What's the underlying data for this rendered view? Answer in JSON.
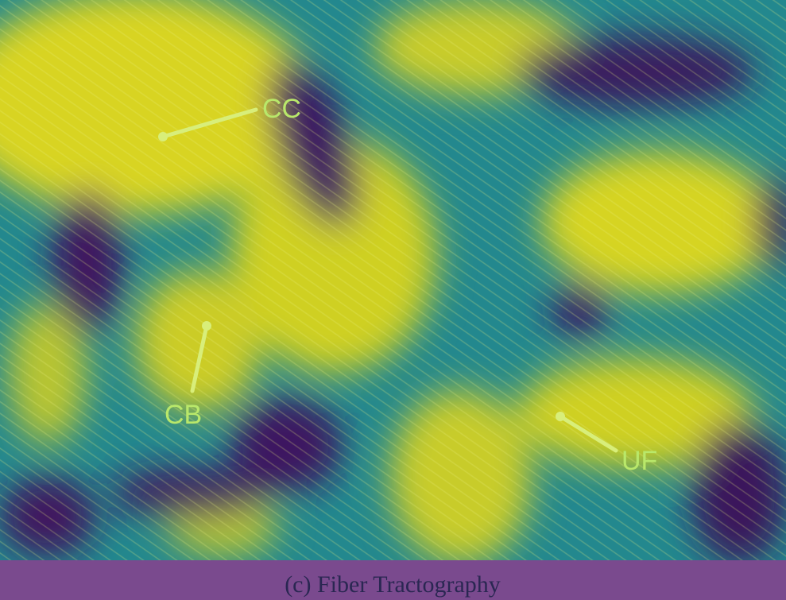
{
  "figure": {
    "labels": [
      "CC",
      "CB",
      "UF"
    ],
    "caption": "(c)  Fiber Tractography"
  }
}
